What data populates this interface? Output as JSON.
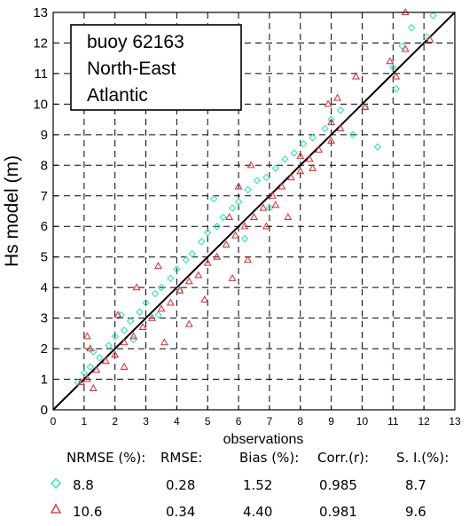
{
  "chart_data": {
    "type": "scatter",
    "xlabel": "observations",
    "ylabel": "Hs model (m)",
    "xlim": [
      0,
      13
    ],
    "ylim": [
      0,
      13
    ],
    "xticks": [
      "0",
      "1",
      "2",
      "3",
      "4",
      "5",
      "6",
      "7",
      "8",
      "9",
      "10",
      "11",
      "12",
      "13"
    ],
    "yticks": [
      "0",
      "1",
      "2",
      "3",
      "4",
      "5",
      "6",
      "7",
      "8",
      "9",
      "10",
      "11",
      "12",
      "13"
    ],
    "grid": true,
    "annotation_lines": [
      "buoy 62163",
      "North-East",
      "Atlantic"
    ],
    "reference_line": {
      "label": "",
      "from": [
        0,
        0
      ],
      "to": [
        13,
        13
      ]
    },
    "series": [
      {
        "marker": "diamond",
        "color": "#1de5b0",
        "points": [
          [
            0.8,
            0.9
          ],
          [
            1.0,
            1.2
          ],
          [
            1.2,
            1.4
          ],
          [
            1.5,
            1.7
          ],
          [
            1.8,
            2.1
          ],
          [
            2.0,
            2.4
          ],
          [
            2.3,
            2.6
          ],
          [
            2.5,
            2.9
          ],
          [
            2.8,
            3.2
          ],
          [
            3.0,
            3.5
          ],
          [
            3.3,
            3.8
          ],
          [
            3.5,
            4.0
          ],
          [
            3.8,
            4.3
          ],
          [
            4.0,
            4.6
          ],
          [
            4.3,
            4.9
          ],
          [
            4.5,
            5.1
          ],
          [
            4.8,
            5.5
          ],
          [
            5.0,
            5.8
          ],
          [
            5.3,
            6.0
          ],
          [
            5.5,
            6.3
          ],
          [
            5.8,
            6.6
          ],
          [
            6.0,
            6.8
          ],
          [
            6.3,
            7.2
          ],
          [
            6.6,
            7.5
          ],
          [
            6.9,
            7.6
          ],
          [
            7.2,
            7.9
          ],
          [
            7.5,
            8.2
          ],
          [
            7.8,
            8.4
          ],
          [
            8.1,
            8.7
          ],
          [
            8.4,
            8.9
          ],
          [
            8.8,
            9.2
          ],
          [
            9.0,
            9.5
          ],
          [
            9.3,
            9.8
          ],
          [
            9.7,
            9.0
          ],
          [
            10.1,
            9.9
          ],
          [
            10.5,
            8.6
          ],
          [
            11.0,
            11.2
          ],
          [
            11.1,
            10.5
          ],
          [
            11.3,
            11.9
          ],
          [
            11.6,
            12.5
          ],
          [
            12.3,
            12.9
          ],
          [
            12.1,
            12.2
          ],
          [
            2.6,
            2.3
          ],
          [
            3.4,
            3.1
          ],
          [
            4.1,
            3.9
          ],
          [
            6.2,
            5.6
          ],
          [
            7.0,
            6.6
          ],
          [
            1.3,
            1.9
          ],
          [
            2.2,
            3.1
          ],
          [
            5.2,
            6.9
          ]
        ]
      },
      {
        "marker": "triangle",
        "color": "#e0262b",
        "points": [
          [
            0.9,
            0.9
          ],
          [
            1.1,
            1.0
          ],
          [
            1.4,
            1.3
          ],
          [
            1.7,
            1.6
          ],
          [
            2.0,
            1.8
          ],
          [
            2.3,
            2.2
          ],
          [
            2.6,
            2.4
          ],
          [
            2.9,
            2.7
          ],
          [
            3.2,
            3.0
          ],
          [
            3.5,
            3.3
          ],
          [
            3.8,
            3.5
          ],
          [
            4.1,
            3.9
          ],
          [
            4.4,
            4.2
          ],
          [
            4.7,
            4.4
          ],
          [
            5.0,
            4.8
          ],
          [
            5.3,
            5.0
          ],
          [
            5.6,
            5.4
          ],
          [
            5.9,
            5.7
          ],
          [
            6.2,
            6.0
          ],
          [
            6.5,
            6.3
          ],
          [
            6.8,
            6.6
          ],
          [
            7.1,
            7.0
          ],
          [
            7.4,
            7.3
          ],
          [
            7.7,
            7.6
          ],
          [
            8.0,
            7.8
          ],
          [
            8.3,
            8.2
          ],
          [
            8.6,
            8.5
          ],
          [
            9.0,
            8.8
          ],
          [
            9.3,
            9.2
          ],
          [
            9.8,
            10.9
          ],
          [
            9.2,
            10.2
          ],
          [
            10.1,
            9.9
          ],
          [
            10.9,
            11.4
          ],
          [
            11.4,
            13.0
          ],
          [
            11.8,
            13.3
          ],
          [
            12.2,
            12.1
          ],
          [
            6.3,
            4.9
          ],
          [
            7.6,
            6.3
          ],
          [
            8.4,
            7.9
          ],
          [
            5.8,
            4.3
          ],
          [
            4.4,
            2.8
          ],
          [
            2.3,
            1.4
          ],
          [
            1.3,
            0.7
          ],
          [
            3.6,
            2.2
          ],
          [
            4.9,
            3.6
          ],
          [
            6.9,
            6.0
          ],
          [
            1.2,
            2.0
          ],
          [
            1.1,
            2.4
          ],
          [
            2.1,
            3.1
          ],
          [
            2.7,
            4.0
          ],
          [
            3.4,
            4.7
          ],
          [
            5.7,
            6.3
          ],
          [
            6.0,
            7.3
          ],
          [
            6.4,
            8.0
          ],
          [
            8.0,
            8.3
          ],
          [
            9.0,
            9.4
          ],
          [
            8.9,
            10.0
          ],
          [
            11.4,
            11.8
          ],
          [
            11.1,
            10.9
          ],
          [
            7.2,
            6.7
          ]
        ]
      }
    ],
    "stats": {
      "headers": [
        "NRMSE (%):",
        "RMSE:",
        "Bias (%):",
        "Corr.(r):",
        "S. I.(%):"
      ],
      "rows": [
        {
          "marker": "diamond",
          "color": "#1de5b0",
          "values": [
            "8.8",
            "0.28",
            "1.52",
            "0.985",
            "8.7"
          ]
        },
        {
          "marker": "triangle",
          "color": "#e0262b",
          "values": [
            "10.6",
            "0.34",
            "4.40",
            "0.981",
            "9.6"
          ]
        }
      ]
    }
  }
}
